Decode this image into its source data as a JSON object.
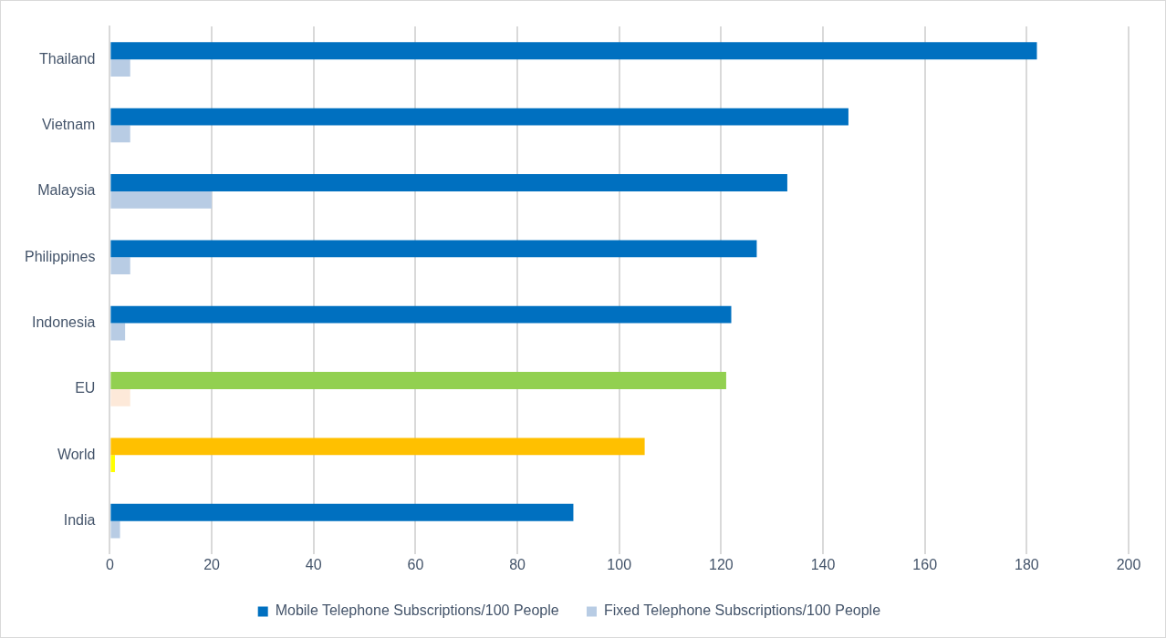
{
  "chart_data": {
    "type": "bar",
    "orientation": "horizontal",
    "categories": [
      "Thailand",
      "Vietnam",
      "Malaysia",
      "Philippines",
      "Indonesia",
      "EU",
      "World",
      "India"
    ],
    "series": [
      {
        "name": "Mobile Telephone Subscriptions/100 People",
        "color": "#0070c0",
        "colors": [
          "#0070c0",
          "#0070c0",
          "#0070c0",
          "#0070c0",
          "#0070c0",
          "#92d050",
          "#ffc000",
          "#0070c0"
        ],
        "values": [
          182,
          145,
          133,
          127,
          122,
          121,
          105,
          91
        ]
      },
      {
        "name": "Fixed Telephone Subscriptions/100 People",
        "color": "#b8cce4",
        "colors": [
          "#b8cce4",
          "#b8cce4",
          "#b8cce4",
          "#b8cce4",
          "#b8cce4",
          "#fde9d9",
          "#ffff00",
          "#b8cce4"
        ],
        "values": [
          4,
          4,
          20,
          4,
          3,
          4,
          1,
          2
        ]
      }
    ],
    "xlim": [
      0,
      200
    ],
    "xticks": [
      0,
      20,
      40,
      60,
      80,
      100,
      120,
      140,
      160,
      180,
      200
    ],
    "grid": "x",
    "legend": "bottom"
  }
}
